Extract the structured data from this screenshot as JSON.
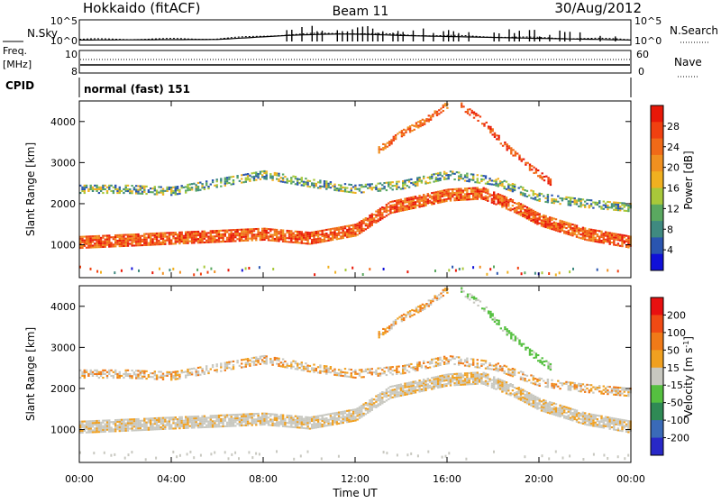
{
  "header": {
    "station": "Hokkaido (fitACF)",
    "beam": "Beam 11",
    "date": "30/Aug/2012"
  },
  "summary": {
    "nsky_label": "N.Sky",
    "nsky_ticks": [
      "10^5",
      "10^0"
    ],
    "nsearch_label": "N.Search",
    "freq_label_1": "Freq.",
    "freq_label_2": "[MHz]",
    "freq_ticks": [
      "10",
      "8"
    ],
    "nave_label": "Nave",
    "nave_ticks": [
      "60",
      "0"
    ],
    "cpid_label": "CPID",
    "cpid_text": "normal (fast) 151"
  },
  "axes": {
    "ylabel": "Slant Range [km]",
    "xlabel": "Time UT",
    "yticks": [
      1000,
      2000,
      3000,
      4000
    ],
    "xticks": [
      "00:00",
      "04:00",
      "08:00",
      "12:00",
      "16:00",
      "20:00",
      "00:00"
    ],
    "ylim": [
      200,
      4500
    ],
    "xlim_hours": [
      0,
      24
    ]
  },
  "power_colorbar": {
    "label": "Power [dB]",
    "ticks": [
      "4",
      "8",
      "12",
      "16",
      "20",
      "24",
      "28"
    ],
    "colors": [
      "#1010d8",
      "#2a55b0",
      "#3f8a80",
      "#5aa860",
      "#a8c83a",
      "#f0b020",
      "#f09020",
      "#f06a18",
      "#f04010",
      "#e81808"
    ]
  },
  "velocity_colorbar": {
    "label": "Velocity [m s",
    "label_sup": "-1",
    "label_close": "]",
    "ticks": [
      "200",
      "100",
      "50",
      "15",
      "-15",
      "-50",
      "-100",
      "-200"
    ],
    "colors": [
      "#2828c8",
      "#3a6ab8",
      "#2f8a55",
      "#55c040",
      "#c8c8c0",
      "#f0a020",
      "#f07a18",
      "#f04a14",
      "#e81010"
    ]
  },
  "chart_data": [
    {
      "type": "heatmap",
      "name": "power",
      "x_unit": "hour UT",
      "y_unit": "km",
      "bands": [
        {
          "label": "lower echo band",
          "points": [
            [
              0,
              1050
            ],
            [
              2,
              1100
            ],
            [
              4,
              1150
            ],
            [
              6,
              1200
            ],
            [
              8,
              1250
            ],
            [
              10,
              1150
            ],
            [
              12,
              1350
            ],
            [
              13.5,
              1900
            ],
            [
              16,
              2200
            ],
            [
              17.5,
              2250
            ],
            [
              19,
              1900
            ],
            [
              20,
              1600
            ],
            [
              22,
              1250
            ],
            [
              24,
              1050
            ]
          ]
        },
        {
          "label": "upper echo band",
          "points": [
            [
              0,
              2350
            ],
            [
              2,
              2350
            ],
            [
              4,
              2300
            ],
            [
              6,
              2500
            ],
            [
              8,
              2700
            ],
            [
              10,
              2500
            ],
            [
              12,
              2350
            ],
            [
              14,
              2450
            ],
            [
              16,
              2700
            ],
            [
              18,
              2550
            ],
            [
              20,
              2150
            ],
            [
              22,
              2000
            ],
            [
              24,
              1900
            ]
          ]
        },
        {
          "label": "rising echo",
          "points": [
            [
              13,
              3300
            ],
            [
              14,
              3700
            ],
            [
              15,
              4000
            ],
            [
              16,
              4400
            ]
          ]
        },
        {
          "label": "descending echo",
          "points": [
            [
              16.5,
              4400
            ],
            [
              17.5,
              4000
            ],
            [
              18.5,
              3400
            ],
            [
              19.5,
              2900
            ],
            [
              20.5,
              2500
            ]
          ]
        }
      ]
    },
    {
      "type": "heatmap",
      "name": "velocity",
      "x_unit": "hour UT",
      "y_unit": "km",
      "bands": [
        {
          "label": "lower echo band",
          "points": [
            [
              0,
              1050
            ],
            [
              2,
              1100
            ],
            [
              4,
              1150
            ],
            [
              6,
              1200
            ],
            [
              8,
              1250
            ],
            [
              10,
              1150
            ],
            [
              12,
              1350
            ],
            [
              13.5,
              1900
            ],
            [
              16,
              2200
            ],
            [
              17.5,
              2250
            ],
            [
              19,
              1900
            ],
            [
              20,
              1600
            ],
            [
              22,
              1250
            ],
            [
              24,
              1050
            ]
          ]
        },
        {
          "label": "upper echo band",
          "points": [
            [
              0,
              2350
            ],
            [
              2,
              2350
            ],
            [
              4,
              2300
            ],
            [
              6,
              2500
            ],
            [
              8,
              2700
            ],
            [
              10,
              2500
            ],
            [
              12,
              2350
            ],
            [
              14,
              2450
            ],
            [
              16,
              2700
            ],
            [
              18,
              2550
            ],
            [
              20,
              2150
            ],
            [
              22,
              2000
            ],
            [
              24,
              1900
            ]
          ]
        },
        {
          "label": "rising echo",
          "points": [
            [
              13,
              3300
            ],
            [
              14,
              3700
            ],
            [
              15,
              4000
            ],
            [
              16,
              4400
            ]
          ]
        },
        {
          "label": "descending echo",
          "points": [
            [
              16.5,
              4400
            ],
            [
              17.5,
              4000
            ],
            [
              18.5,
              3400
            ],
            [
              19.5,
              2900
            ],
            [
              20.5,
              2500
            ]
          ]
        }
      ]
    }
  ]
}
